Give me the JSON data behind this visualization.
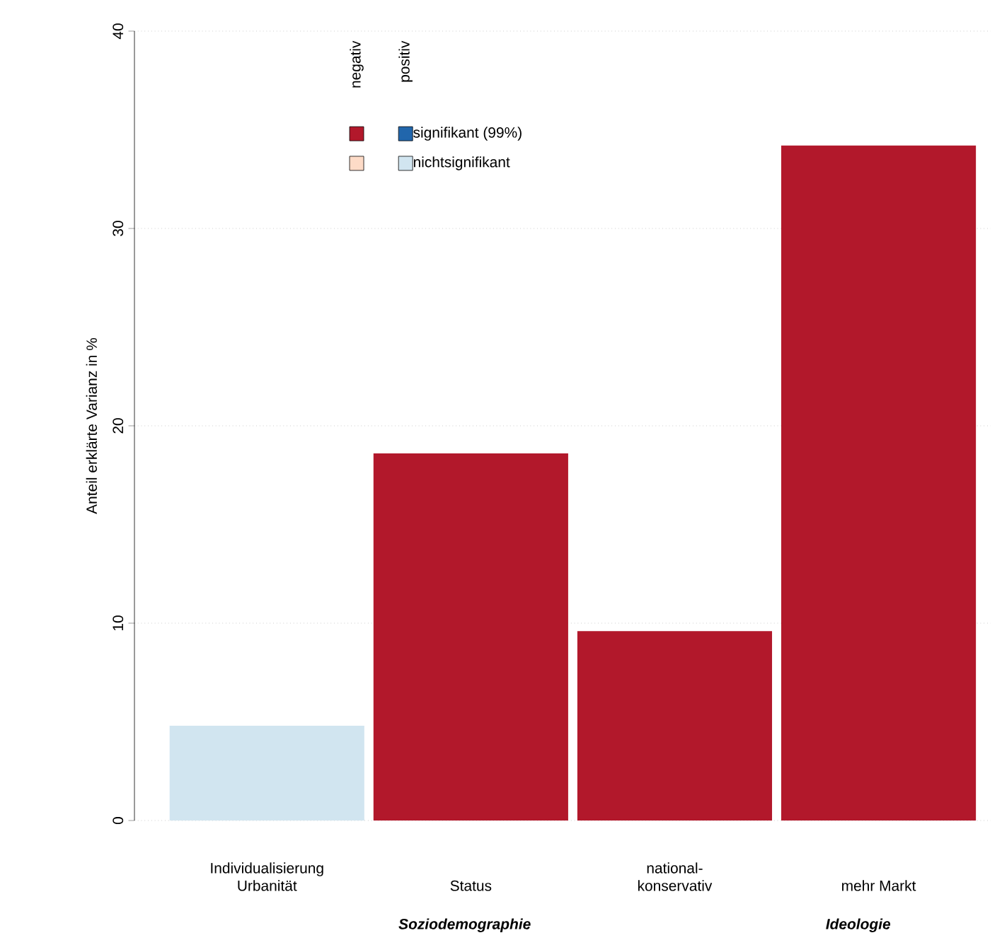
{
  "chart_data": {
    "type": "bar",
    "ylabel": "Anteil erklärte Varianz in %",
    "categories": [
      "Individualisierung Urbanität",
      "Status",
      "national-konservativ",
      "mehr Markt"
    ],
    "series": [
      {
        "color": "#b2182b",
        "values": [
          null,
          18.6,
          9.6,
          34.2
        ]
      },
      {
        "color": "#2166ac",
        "values": [
          null,
          null,
          null,
          null
        ]
      },
      {
        "color": "#fddbc7",
        "values": [
          null,
          null,
          null,
          null
        ]
      },
      {
        "color": "#d1e5f0",
        "values": [
          4.8,
          null,
          null,
          null
        ]
      }
    ],
    "ylim": [
      0,
      40
    ],
    "yticks": [
      0,
      10,
      20,
      30,
      40
    ],
    "grid": "y",
    "annotations": [
      "negativ",
      "positiv",
      "signifikant (99%)",
      "nichtsignifikant",
      "Soziodemographie",
      "Ideologie"
    ]
  }
}
